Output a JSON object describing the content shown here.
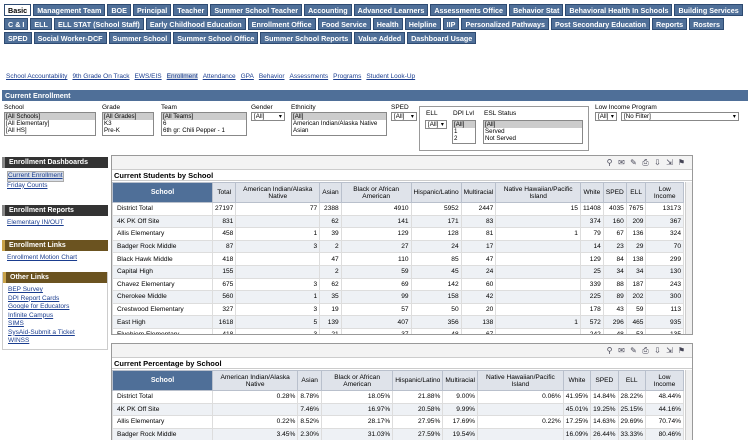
{
  "tabs": [
    "Basic",
    "Management Team",
    "BOE",
    "Principal",
    "Teacher",
    "Summer School Teacher",
    "Accounting",
    "Advanced Learners",
    "Assessments Office",
    "Behavior Stat",
    "Behavioral Health In Schools",
    "Building Services",
    "C & I",
    "ELL",
    "ELL STAT (School Staff)",
    "Early Childhood Education",
    "Enrollment Office",
    "Food Service",
    "Health",
    "Helpline",
    "IIP",
    "Personalized Pathways",
    "Post Secondary Education",
    "Reports",
    "Rosters",
    "SPED",
    "Social Worker-DCF",
    "Summer School",
    "Summer School Office",
    "Summer School Reports",
    "Value Added",
    "Dashboard Usage"
  ],
  "sublinks": [
    "School Accountability",
    "9th Grade On Track",
    "EWS/EIS",
    "Enrollment",
    "Attendance",
    "GPA",
    "Behavior",
    "Assessments",
    "Programs",
    "Student Look-Up"
  ],
  "section_title": "Current Enrollment",
  "filters": {
    "school": {
      "label": "School",
      "options": [
        "[All Schools]",
        "[All Elementary]",
        "[All HS]"
      ]
    },
    "grade": {
      "label": "Grade",
      "options": [
        "[All Grades]",
        "K3",
        "Pre-K"
      ]
    },
    "team": {
      "label": "Team",
      "options": [
        "[All Teams]",
        "6",
        "6th gr: Chili Pepper - 1"
      ]
    },
    "gender": {
      "label": "Gender",
      "value": "[All]"
    },
    "ethnicity": {
      "label": "Ethnicity",
      "options": [
        "[All]",
        "American Indian/Alaska Native",
        "Asian"
      ]
    },
    "sped": {
      "label": "SPED",
      "value": "[All]"
    },
    "ell": {
      "label": "ELL",
      "value": "[All]"
    },
    "dpi": {
      "label": "DPI Lvl",
      "options": [
        "[All]",
        "1",
        "2"
      ]
    },
    "esl": {
      "label": "ESL Status",
      "options": [
        "[All]",
        "Served",
        "Not Served"
      ]
    },
    "lowincome": {
      "label": "Low Income Program",
      "value": "[All]",
      "value2": "[No Filter]"
    }
  },
  "sidebar": {
    "dash_head": "Enrollment Dashboards",
    "dash_items": [
      "Current Enrollment",
      "Friday Counts"
    ],
    "rep_head": "Enrollment Reports",
    "rep_items": [
      "Elementary IN/OUT"
    ],
    "links_head": "Enrollment Links",
    "links_items": [
      "Enrollment Motion Chart"
    ],
    "other_head": "Other Links",
    "other_items": [
      "BEP Survey",
      "DPI Report Cards",
      "Google for Educators",
      "Infinite Campus",
      "SIMS",
      "SysAid-Submit a Ticket",
      "WINSS"
    ]
  },
  "students_table": {
    "title": "Current Students by School",
    "headers": [
      "School",
      "Total",
      "American Indian/Alaska Native",
      "Asian",
      "Black or African American",
      "Hispanic/Latino",
      "Multiracial",
      "Native Hawaiian/Pacific Island",
      "White",
      "SPED",
      "ELL",
      "Low Income"
    ],
    "rows": [
      [
        "District Total",
        "27197",
        "77",
        "2388",
        "4910",
        "5952",
        "2447",
        "15",
        "11408",
        "4035",
        "7675",
        "13173"
      ],
      [
        "4K PK Off Site",
        "831",
        "",
        "62",
        "141",
        "171",
        "83",
        "",
        "374",
        "160",
        "209",
        "367"
      ],
      [
        "Allis Elementary",
        "458",
        "1",
        "39",
        "129",
        "128",
        "81",
        "1",
        "79",
        "67",
        "136",
        "324"
      ],
      [
        "Badger Rock Middle",
        "87",
        "3",
        "2",
        "27",
        "24",
        "17",
        "",
        "14",
        "23",
        "29",
        "70"
      ],
      [
        "Black Hawk Middle",
        "418",
        "",
        "47",
        "110",
        "85",
        "47",
        "",
        "129",
        "84",
        "138",
        "299"
      ],
      [
        "Capital High",
        "155",
        "",
        "2",
        "59",
        "45",
        "24",
        "",
        "25",
        "34",
        "34",
        "130"
      ],
      [
        "Chavez Elementary",
        "675",
        "3",
        "62",
        "69",
        "142",
        "60",
        "",
        "339",
        "88",
        "187",
        "243"
      ],
      [
        "Cherokee Middle",
        "560",
        "1",
        "35",
        "99",
        "158",
        "42",
        "",
        "225",
        "89",
        "202",
        "300"
      ],
      [
        "Crestwood Elementary",
        "327",
        "3",
        "19",
        "57",
        "50",
        "20",
        "",
        "178",
        "43",
        "59",
        "113"
      ],
      [
        "East High",
        "1618",
        "5",
        "139",
        "407",
        "356",
        "138",
        "1",
        "572",
        "296",
        "465",
        "935"
      ],
      [
        "Elvehjem Elementary",
        "418",
        "3",
        "21",
        "37",
        "48",
        "67",
        "",
        "242",
        "48",
        "53",
        "135"
      ]
    ]
  },
  "percent_table": {
    "title": "Current Percentage by School",
    "headers": [
      "School",
      "American Indian/Alaska Native",
      "Asian",
      "Black or African American",
      "Hispanic/Latino",
      "Multiracial",
      "Native Hawaiian/Pacific Island",
      "White",
      "SPED",
      "ELL",
      "Low Income"
    ],
    "rows": [
      [
        "District Total",
        "0.28%",
        "8.78%",
        "18.05%",
        "21.88%",
        "9.00%",
        "0.06%",
        "41.95%",
        "14.84%",
        "28.22%",
        "48.44%"
      ],
      [
        "4K PK Off Site",
        "",
        "7.46%",
        "16.97%",
        "20.58%",
        "9.99%",
        "",
        "45.01%",
        "19.25%",
        "25.15%",
        "44.16%"
      ],
      [
        "Allis Elementary",
        "0.22%",
        "8.52%",
        "28.17%",
        "27.95%",
        "17.69%",
        "0.22%",
        "17.25%",
        "14.63%",
        "29.69%",
        "70.74%"
      ],
      [
        "Badger Rock Middle",
        "3.45%",
        "2.30%",
        "31.03%",
        "27.59%",
        "19.54%",
        "",
        "16.09%",
        "26.44%",
        "33.33%",
        "80.46%"
      ]
    ]
  }
}
